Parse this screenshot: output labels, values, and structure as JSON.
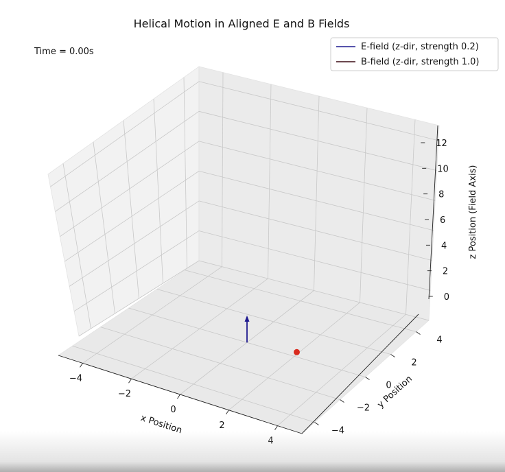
{
  "chart_data": {
    "type": "3d-line",
    "title": "Helical Motion in Aligned E and B Fields",
    "time_label": "Time = 0.00s",
    "xlabel": "x Position",
    "ylabel": "y Position",
    "zlabel": "z Position (Field Axis)",
    "xlim": [
      -5,
      5
    ],
    "ylim": [
      -5,
      5
    ],
    "zlim": [
      0,
      13
    ],
    "xticks": [
      "−4",
      "−2",
      "0",
      "2",
      "4"
    ],
    "yticks": [
      "−4",
      "−2",
      "0",
      "2",
      "4"
    ],
    "zticks": [
      "0",
      "2",
      "4",
      "6",
      "8",
      "10",
      "12"
    ],
    "grid": true,
    "legend_position": "top-right",
    "series": [
      {
        "name": "E-field (z-dir, strength 0.2)",
        "color": "#1f1a8f",
        "kind": "arrow",
        "origin": [
          0,
          0,
          0
        ],
        "length": 2
      },
      {
        "name": "B-field (z-dir, strength 1.0)",
        "color": "#3a0a14",
        "kind": "arrow"
      }
    ],
    "particle": {
      "x": 1,
      "y": 0,
      "z": 0,
      "color": "#d92b1e"
    }
  }
}
